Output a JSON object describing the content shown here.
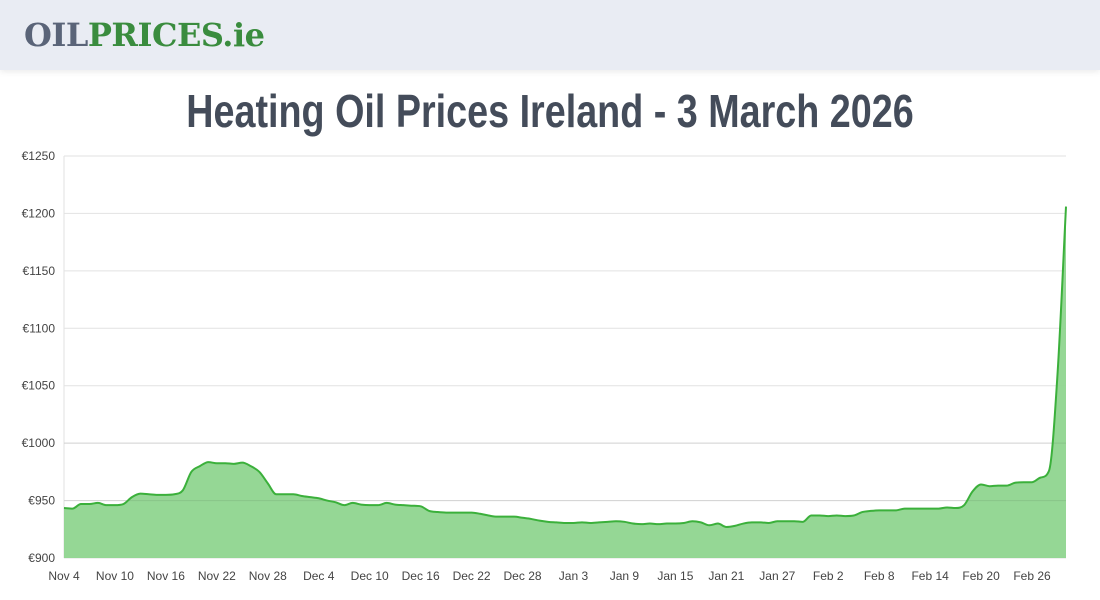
{
  "header": {
    "logo_part1": "OIL",
    "logo_part2": "PRICES.ie"
  },
  "page_title": "Heating Oil Prices Ireland - 3 March 2026",
  "colors": {
    "line": "#3bb03b",
    "fill": "#8fd58f",
    "header_bg": "#e9ecf3",
    "title": "#444c5a"
  },
  "chart_data": {
    "type": "area",
    "title": "",
    "xlabel": "",
    "ylabel": "",
    "ylim": [
      900,
      1250
    ],
    "y_ticks": [
      "€900",
      "€950",
      "€1000",
      "€1050",
      "€1100",
      "€1150",
      "€1200",
      "€1250"
    ],
    "y_tick_values": [
      900,
      950,
      1000,
      1050,
      1100,
      1150,
      1200,
      1250
    ],
    "x_ticks": [
      "Nov 4",
      "Nov 10",
      "Nov 16",
      "Nov 22",
      "Nov 28",
      "Dec 4",
      "Dec 10",
      "Dec 16",
      "Dec 22",
      "Dec 28",
      "Jan 3",
      "Jan 9",
      "Jan 15",
      "Jan 21",
      "Jan 27",
      "Feb 2",
      "Feb 8",
      "Feb 14",
      "Feb 20",
      "Feb 26"
    ],
    "grid": true,
    "x_start": "Nov 4",
    "x_end": "Mar 2",
    "x_interval": "daily",
    "values": [
      943.5,
      943,
      947,
      947,
      948,
      946,
      946,
      947,
      953,
      956,
      955.5,
      955,
      955,
      955.5,
      959,
      975,
      980,
      983.5,
      982.5,
      982.5,
      982,
      983,
      980,
      975,
      965,
      955.5,
      955.5,
      955.5,
      954,
      953,
      952,
      950,
      948.5,
      946,
      948,
      946.5,
      946,
      946,
      948,
      946.5,
      946,
      945.5,
      945,
      941,
      940,
      939.5,
      939.5,
      939.5,
      939.5,
      938.5,
      937,
      936,
      936,
      936,
      935,
      934,
      932.5,
      931.5,
      931,
      930.5,
      930.5,
      931,
      930.5,
      931,
      931.5,
      932,
      931.5,
      930,
      929.5,
      930,
      929.5,
      930,
      930,
      930.5,
      932,
      931,
      928.5,
      930,
      927,
      928,
      930,
      931,
      931,
      930.5,
      932,
      932,
      932,
      931.5,
      937,
      937,
      936.5,
      937,
      936.5,
      937,
      940,
      941,
      941.5,
      941.5,
      941.5,
      943,
      943,
      943,
      943,
      943,
      944,
      943.5,
      946,
      958,
      964,
      962.5,
      963,
      963,
      965.5,
      966,
      966,
      970,
      976,
      1060,
      1206
    ]
  }
}
